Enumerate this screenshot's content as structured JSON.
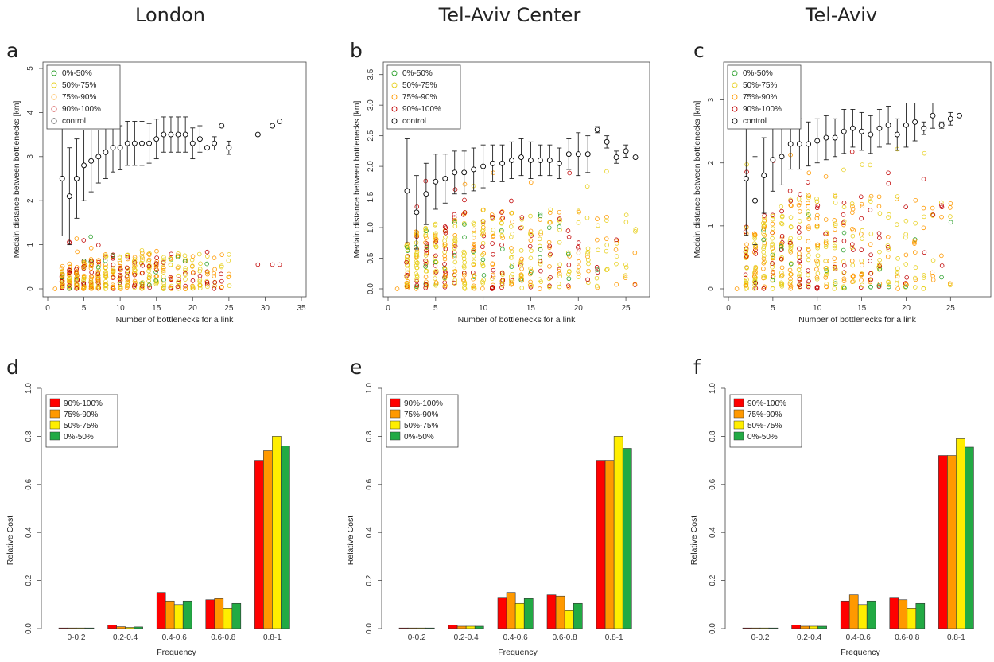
{
  "figure": {
    "cities": [
      "London",
      "Tel-Aviv Center",
      "Tel-Aviv"
    ],
    "panel_labels": [
      "a",
      "b",
      "c",
      "d",
      "e",
      "f"
    ]
  },
  "colors": {
    "0%-50%": "#2ca02c",
    "50%-75%": "#e8d020",
    "75%-90%": "#ff9900",
    "90%-100%": "#c00000",
    "control": "#000000",
    "bar_90_100": "#ff0000",
    "bar_75_90": "#ff9900",
    "bar_50_75": "#ffee00",
    "bar_0_50": "#22aa44"
  },
  "chart_data": [
    {
      "type": "scatter",
      "panel": "a",
      "title": "London",
      "xlabel": "Number of bottlenecks for a link",
      "ylabel": "Medain distance between bottlenecks [km]",
      "xlim": [
        0,
        35
      ],
      "ylim": [
        0,
        5
      ],
      "xticks": [
        0,
        5,
        10,
        15,
        20,
        25,
        30,
        35
      ],
      "yticks": [
        0,
        1,
        2,
        3,
        4,
        5
      ],
      "legend": [
        "0%-50%",
        "50%-75%",
        "75%-90%",
        "90%-100%",
        "control"
      ],
      "legend_position": "top-left",
      "control": {
        "x": [
          2,
          3,
          4,
          5,
          6,
          7,
          8,
          9,
          10,
          11,
          12,
          13,
          14,
          15,
          16,
          17,
          18,
          19,
          20,
          21,
          22,
          23,
          24,
          25,
          29,
          31,
          32
        ],
        "y": [
          2.5,
          2.1,
          2.5,
          2.8,
          2.9,
          3.0,
          3.1,
          3.2,
          3.2,
          3.3,
          3.3,
          3.3,
          3.3,
          3.4,
          3.5,
          3.5,
          3.5,
          3.5,
          3.3,
          3.4,
          3.2,
          3.3,
          3.7,
          3.2,
          3.5,
          3.7,
          3.8
        ],
        "err": [
          1.3,
          1.1,
          0.9,
          0.8,
          0.7,
          0.6,
          0.6,
          0.55,
          0.5,
          0.5,
          0.5,
          0.5,
          0.45,
          0.45,
          0.4,
          0.4,
          0.4,
          0.4,
          0.35,
          0.3,
          0.0,
          0.15,
          0.0,
          0.15,
          0.0,
          0.0,
          0.0
        ]
      },
      "scatter_xmax": 25,
      "scatter_ymax": 0.8,
      "outliers_x": [
        29,
        31,
        32
      ],
      "outliers_y": [
        0.55,
        0.55,
        0.55
      ]
    },
    {
      "type": "scatter",
      "panel": "b",
      "title": "Tel-Aviv Center",
      "xlabel": "Number of bottlenecks for a link",
      "ylabel": "Medain distance between bottlenecks [km]",
      "xlim": [
        0,
        27
      ],
      "ylim": [
        0,
        3.6
      ],
      "xticks": [
        0,
        5,
        10,
        15,
        20,
        25
      ],
      "yticks": [
        0.0,
        0.5,
        1.0,
        1.5,
        2.0,
        2.5,
        3.0,
        3.5
      ],
      "legend": [
        "0%-50%",
        "50%-75%",
        "75%-90%",
        "90%-100%",
        "control"
      ],
      "legend_position": "top-left",
      "control": {
        "x": [
          2,
          3,
          4,
          5,
          6,
          7,
          8,
          9,
          10,
          11,
          12,
          13,
          14,
          15,
          16,
          17,
          18,
          19,
          20,
          21,
          22,
          23,
          24,
          25,
          26
        ],
        "y": [
          1.6,
          1.25,
          1.55,
          1.75,
          1.8,
          1.9,
          1.9,
          1.95,
          2.0,
          2.05,
          2.05,
          2.1,
          2.15,
          2.1,
          2.1,
          2.1,
          2.05,
          2.2,
          2.2,
          2.2,
          2.6,
          2.4,
          2.15,
          2.25,
          2.15
        ],
        "err": [
          0.85,
          0.6,
          0.5,
          0.45,
          0.4,
          0.35,
          0.35,
          0.35,
          0.35,
          0.3,
          0.3,
          0.3,
          0.3,
          0.3,
          0.25,
          0.25,
          0.25,
          0.25,
          0.35,
          0.3,
          0.05,
          0.1,
          0.1,
          0.1,
          0.0
        ]
      },
      "scatter_xmax": 26,
      "scatter_ymax": 1.3,
      "outliers_x": [],
      "outliers_y": []
    },
    {
      "type": "scatter",
      "panel": "c",
      "title": "Tel-Aviv",
      "xlabel": "Number of bottlenecks for a link",
      "ylabel": "Medain distance between bottlenecks [km]",
      "xlim": [
        0,
        29
      ],
      "ylim": [
        0,
        3.5
      ],
      "xticks": [
        0,
        5,
        10,
        15,
        20,
        25
      ],
      "yticks": [
        0,
        1,
        2,
        3
      ],
      "legend": [
        "0%-50%",
        "50%-75%",
        "75%-90%",
        "90%-100%",
        "control"
      ],
      "legend_position": "top-left",
      "control": {
        "x": [
          2,
          3,
          4,
          5,
          6,
          7,
          8,
          9,
          10,
          11,
          12,
          13,
          14,
          15,
          16,
          17,
          18,
          19,
          20,
          21,
          22,
          23,
          24,
          25,
          26
        ],
        "y": [
          1.75,
          1.4,
          1.8,
          2.05,
          2.1,
          2.3,
          2.3,
          2.3,
          2.35,
          2.4,
          2.4,
          2.5,
          2.55,
          2.5,
          2.45,
          2.55,
          2.6,
          2.45,
          2.6,
          2.65,
          2.55,
          2.75,
          2.6,
          2.7,
          2.75
        ],
        "err": [
          0.9,
          0.7,
          0.6,
          0.5,
          0.45,
          0.4,
          0.4,
          0.35,
          0.35,
          0.35,
          0.3,
          0.35,
          0.3,
          0.3,
          0.3,
          0.3,
          0.3,
          0.25,
          0.35,
          0.3,
          0.1,
          0.2,
          0.05,
          0.1,
          0.0
        ]
      },
      "scatter_xmax": 25,
      "scatter_ymax": 1.5,
      "outliers_x": [],
      "outliers_y": []
    },
    {
      "type": "bar",
      "panel": "d",
      "xlabel": "Frequency",
      "ylabel": "Relative Cost",
      "ylim": [
        0,
        1.0
      ],
      "yticks": [
        0.0,
        0.2,
        0.4,
        0.6,
        0.8,
        1.0
      ],
      "categories": [
        "0-0.2",
        "0.2-0.4",
        "0.4-0.6",
        "0.6-0.8",
        "0.8-1"
      ],
      "legend_position": "top-left",
      "series": [
        {
          "name": "90%-100%",
          "values": [
            0.0,
            0.015,
            0.15,
            0.12,
            0.7
          ]
        },
        {
          "name": "75%-90%",
          "values": [
            0.0,
            0.008,
            0.115,
            0.125,
            0.74
          ]
        },
        {
          "name": "50%-75%",
          "values": [
            0.0,
            0.005,
            0.1,
            0.085,
            0.8
          ]
        },
        {
          "name": "0%-50%",
          "values": [
            0.0,
            0.007,
            0.115,
            0.105,
            0.76
          ]
        }
      ]
    },
    {
      "type": "bar",
      "panel": "e",
      "xlabel": "Frequency",
      "ylabel": "Relative Cost",
      "ylim": [
        0,
        1.0
      ],
      "yticks": [
        0.0,
        0.2,
        0.4,
        0.6,
        0.8,
        1.0
      ],
      "categories": [
        "0-0.2",
        "0.2-0.4",
        "0.4-0.6",
        "0.6-0.8",
        "0.8-1"
      ],
      "legend_position": "top-left",
      "series": [
        {
          "name": "90%-100%",
          "values": [
            0.0,
            0.015,
            0.13,
            0.14,
            0.7
          ]
        },
        {
          "name": "75%-90%",
          "values": [
            0.0,
            0.01,
            0.15,
            0.135,
            0.7
          ]
        },
        {
          "name": "50%-75%",
          "values": [
            0.0,
            0.01,
            0.105,
            0.075,
            0.8
          ]
        },
        {
          "name": "0%-50%",
          "values": [
            0.0,
            0.01,
            0.125,
            0.105,
            0.75
          ]
        }
      ]
    },
    {
      "type": "bar",
      "panel": "f",
      "xlabel": "Frequency",
      "ylabel": "Relative Cost",
      "ylim": [
        0,
        1.0
      ],
      "yticks": [
        0.0,
        0.2,
        0.4,
        0.6,
        0.8,
        1.0
      ],
      "categories": [
        "0-0.2",
        "0.2-0.4",
        "0.4-0.6",
        "0.6-0.8",
        "0.8-1"
      ],
      "legend_position": "top-left",
      "series": [
        {
          "name": "90%-100%",
          "values": [
            0.0,
            0.015,
            0.115,
            0.13,
            0.72
          ]
        },
        {
          "name": "75%-90%",
          "values": [
            0.0,
            0.01,
            0.14,
            0.12,
            0.72
          ]
        },
        {
          "name": "50%-75%",
          "values": [
            0.0,
            0.01,
            0.1,
            0.085,
            0.79
          ]
        },
        {
          "name": "0%-50%",
          "values": [
            0.0,
            0.01,
            0.115,
            0.105,
            0.755
          ]
        }
      ]
    }
  ]
}
